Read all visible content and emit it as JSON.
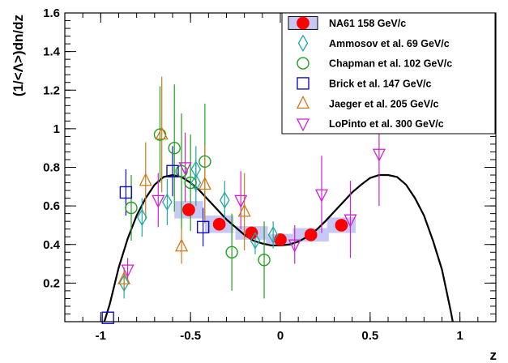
{
  "chart_data": {
    "type": "scatter",
    "xlabel": "z",
    "ylabel": "(1/<Λ>)dn/dz",
    "xlim": [
      -1.2,
      1.2
    ],
    "ylim": [
      0,
      1.6
    ],
    "x_ticks": [
      "-1",
      "-0.5",
      "0",
      "0.5",
      "1"
    ],
    "y_ticks": [
      "0.2",
      "0.4",
      "0.6",
      "0.8",
      "1",
      "1.2",
      "1.4",
      "1.6"
    ],
    "x_tick_values": [
      -1,
      -0.5,
      0,
      0.5,
      1
    ],
    "y_tick_values": [
      0.2,
      0.4,
      0.6,
      0.8,
      1.0,
      1.2,
      1.4,
      1.6
    ],
    "grid": false,
    "legend_position": "top-right",
    "curve": {
      "description_points": [
        [
          -0.98,
          0.0
        ],
        [
          -0.95,
          0.09
        ],
        [
          -0.9,
          0.28
        ],
        [
          -0.85,
          0.43
        ],
        [
          -0.8,
          0.55
        ],
        [
          -0.75,
          0.64
        ],
        [
          -0.7,
          0.71
        ],
        [
          -0.65,
          0.75
        ],
        [
          -0.6,
          0.76
        ],
        [
          -0.55,
          0.75
        ],
        [
          -0.5,
          0.72
        ],
        [
          -0.45,
          0.68
        ],
        [
          -0.4,
          0.63
        ],
        [
          -0.35,
          0.58
        ],
        [
          -0.3,
          0.53
        ],
        [
          -0.25,
          0.49
        ],
        [
          -0.2,
          0.45
        ],
        [
          -0.15,
          0.42
        ],
        [
          -0.1,
          0.405
        ],
        [
          -0.05,
          0.395
        ],
        [
          0.0,
          0.395
        ],
        [
          0.05,
          0.4
        ],
        [
          0.1,
          0.415
        ],
        [
          0.15,
          0.44
        ],
        [
          0.2,
          0.475
        ],
        [
          0.25,
          0.52
        ],
        [
          0.3,
          0.57
        ],
        [
          0.35,
          0.62
        ],
        [
          0.4,
          0.67
        ],
        [
          0.45,
          0.71
        ],
        [
          0.5,
          0.745
        ],
        [
          0.55,
          0.76
        ],
        [
          0.6,
          0.76
        ],
        [
          0.65,
          0.75
        ],
        [
          0.7,
          0.71
        ],
        [
          0.75,
          0.64
        ],
        [
          0.8,
          0.55
        ],
        [
          0.85,
          0.42
        ],
        [
          0.9,
          0.27
        ],
        [
          0.95,
          0.05
        ],
        [
          0.96,
          0.0
        ]
      ],
      "color": "#000000"
    },
    "series": [
      {
        "name": "NA61 158 GeV/c",
        "marker": "filled-circle",
        "color": "#ff0000",
        "band_color": "#c8c8f5",
        "points": [
          {
            "x": -0.51,
            "y": 0.58,
            "xw": 0.08,
            "band": 0.045
          },
          {
            "x": -0.34,
            "y": 0.505,
            "xw": 0.08,
            "band": 0.045
          },
          {
            "x": -0.16,
            "y": 0.46,
            "xw": 0.09,
            "band": 0.035
          },
          {
            "x": 0.0,
            "y": 0.425,
            "xw": 0.08,
            "band": 0.03
          },
          {
            "x": 0.17,
            "y": 0.45,
            "xw": 0.1,
            "band": 0.035
          },
          {
            "x": 0.34,
            "y": 0.5,
            "xw": 0.08,
            "band": 0.04
          }
        ]
      },
      {
        "name": "Ammosov et al. 69 GeV/c",
        "marker": "open-diamond",
        "color": "#20a8a8",
        "points": [
          {
            "x": -0.87,
            "y": 0.2,
            "err": 0.08
          },
          {
            "x": -0.77,
            "y": 0.54,
            "err": 0.1
          },
          {
            "x": -0.63,
            "y": 0.62,
            "err": 0.12
          },
          {
            "x": -0.47,
            "y": 0.72,
            "err": 0.12
          },
          {
            "x": -0.47,
            "y": 0.79,
            "err": 0.12
          },
          {
            "x": -0.31,
            "y": 0.63,
            "err": 0.1
          },
          {
            "x": -0.14,
            "y": 0.42,
            "err": 0.07
          },
          {
            "x": -0.04,
            "y": 0.45,
            "err": 0.07
          }
        ]
      },
      {
        "name": "Chapman et al. 102 GeV/c",
        "marker": "open-circle",
        "color": "#20a020",
        "points": [
          {
            "x": -0.83,
            "y": 0.59,
            "err": 0.17
          },
          {
            "x": -0.67,
            "y": 0.97,
            "err": 0.25
          },
          {
            "x": -0.59,
            "y": 0.9,
            "err": 0.33
          },
          {
            "x": -0.55,
            "y": 0.78,
            "err": 0.3
          },
          {
            "x": -0.5,
            "y": 0.72,
            "err": 0.25
          },
          {
            "x": -0.42,
            "y": 0.83,
            "err": 0.3
          },
          {
            "x": -0.27,
            "y": 0.36,
            "err": 0.2
          },
          {
            "x": -0.09,
            "y": 0.32,
            "err": 0.2
          }
        ]
      },
      {
        "name": "Brick et al. 147 GeV/c",
        "marker": "open-square",
        "color": "#1010c0",
        "points": [
          {
            "x": -0.96,
            "y": 0.02,
            "err": 0.0
          },
          {
            "x": -0.86,
            "y": 0.67,
            "err": 0.12
          },
          {
            "x": -0.6,
            "y": 0.78,
            "err": 0.13
          },
          {
            "x": -0.43,
            "y": 0.49,
            "err": 0.1
          }
        ]
      },
      {
        "name": "Jaeger et al. 205 GeV/c",
        "marker": "open-triangle-up",
        "color": "#d07818",
        "points": [
          {
            "x": -0.87,
            "y": 0.22,
            "err": 0.06
          },
          {
            "x": -0.75,
            "y": 0.73,
            "err": 0.2
          },
          {
            "x": -0.66,
            "y": 0.97,
            "err": 0.3
          },
          {
            "x": -0.55,
            "y": 0.39,
            "err": 0.09
          },
          {
            "x": -0.42,
            "y": 0.71,
            "err": 0.2
          },
          {
            "x": -0.2,
            "y": 0.57,
            "err": 0.2
          }
        ]
      },
      {
        "name": "LoPinto et al. 300 GeV/c",
        "marker": "open-triangle-down",
        "color": "#d020d0",
        "points": [
          {
            "x": -0.85,
            "y": 0.27,
            "err": 0.06
          },
          {
            "x": -0.68,
            "y": 0.63,
            "err": 0.14
          },
          {
            "x": -0.53,
            "y": 0.8,
            "err": 0.18
          },
          {
            "x": -0.22,
            "y": 0.63,
            "err": 0.15
          },
          {
            "x": 0.08,
            "y": 0.4,
            "err": 0.1
          },
          {
            "x": 0.23,
            "y": 0.66,
            "err": 0.2
          },
          {
            "x": 0.39,
            "y": 0.53,
            "err": 0.2
          },
          {
            "x": 0.55,
            "y": 0.87,
            "err": 0.27
          }
        ]
      }
    ]
  }
}
